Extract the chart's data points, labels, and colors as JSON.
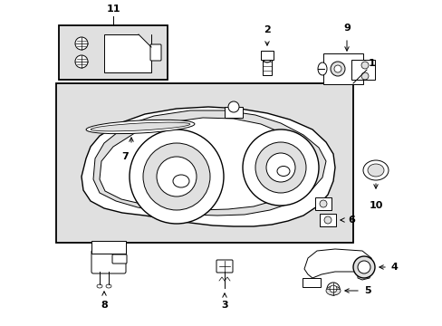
{
  "bg_color": "#ffffff",
  "line_color": "#000000",
  "gray_fill": "#cccccc",
  "light_gray": "#e0e0e0",
  "white": "#ffffff"
}
